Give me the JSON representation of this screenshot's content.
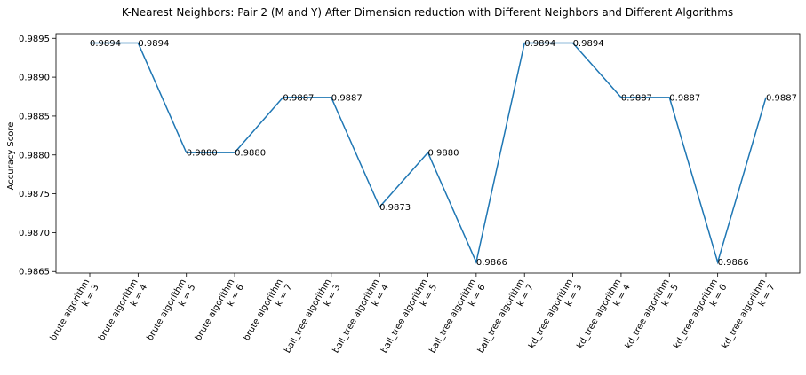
{
  "chart_data": {
    "type": "line",
    "title": "K-Nearest Neighbors: Pair 2 (M and Y) After Dimension reduction with Different Neighbors and Different Algorithms",
    "xlabel": "",
    "ylabel": "Accuracy Score",
    "ylim": [
      0.98648,
      0.98956
    ],
    "yticks": [
      "0.9865",
      "0.9870",
      "0.9875",
      "0.9880",
      "0.9885",
      "0.9890",
      "0.9895"
    ],
    "ytick_values": [
      0.9865,
      0.987,
      0.9875,
      0.988,
      0.9885,
      0.989,
      0.9895
    ],
    "categories": [
      [
        "brute algorithm",
        "k = 3"
      ],
      [
        "brute algorithm",
        "k = 4"
      ],
      [
        "brute algorithm",
        "k = 5"
      ],
      [
        "brute algorithm",
        "k = 6"
      ],
      [
        "brute algorithm",
        "k = 7"
      ],
      [
        "ball_tree algorithm",
        "k = 3"
      ],
      [
        "ball_tree algorithm",
        "k = 4"
      ],
      [
        "ball_tree algorithm",
        "k = 5"
      ],
      [
        "ball_tree algorithm",
        "k = 6"
      ],
      [
        "ball_tree algorithm",
        "k = 7"
      ],
      [
        "kd_tree algorithm",
        "k = 3"
      ],
      [
        "kd_tree algorithm",
        "k = 4"
      ],
      [
        "kd_tree algorithm",
        "k = 5"
      ],
      [
        "kd_tree algorithm",
        "k = 6"
      ],
      [
        "kd_tree algorithm",
        "k = 7"
      ]
    ],
    "values": [
      0.98944,
      0.98944,
      0.98803,
      0.98803,
      0.98874,
      0.98874,
      0.98733,
      0.98803,
      0.98662,
      0.98944,
      0.98944,
      0.98874,
      0.98874,
      0.98662,
      0.98874
    ],
    "data_labels": [
      "0.9894",
      "0.9894",
      "0.9880",
      "0.9880",
      "0.9887",
      "0.9887",
      "0.9873",
      "0.9880",
      "0.9866",
      "0.9894",
      "0.9894",
      "0.9887",
      "0.9887",
      "0.9866",
      "0.9887"
    ],
    "line_color": "#1f77b4",
    "grid": false,
    "legend": "none"
  }
}
